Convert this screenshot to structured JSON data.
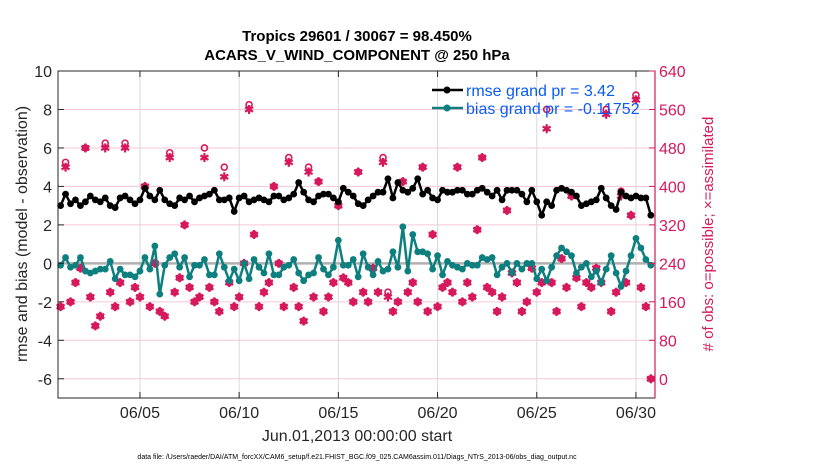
{
  "chart_data": {
    "type": "line",
    "title": "Tropics 29601 / 30067 = 98.450%",
    "subtitle": "ACARS_V_WIND_COMPONENT @ 250 hPa",
    "xlabel": "Jun.01,2013 00:00:00 start",
    "ylabel": "rmse and bias (model - observation)",
    "ylabel_right": "# of obs: o=possible; ×=assimilated",
    "footnote": "data file: /Users/raeder/DAI/ATM_forcXX/CAM6_setup/f.e21.FHIST_BGC.f09_025.CAM6assim.011/Diags_NTrS_2013-06/obs_diag_output.nc",
    "ylim": [
      -7,
      10
    ],
    "ylim_right": [
      -40,
      640
    ],
    "yticks": [
      "10",
      "8",
      "6",
      "4",
      "2",
      "0",
      "-2",
      "-4",
      "-6"
    ],
    "yticks_right": [
      "640",
      "560",
      "480",
      "400",
      "320",
      "240",
      "160",
      "80",
      "0"
    ],
    "xticks": [
      "06/05",
      "06/10",
      "06/15",
      "06/20",
      "06/25",
      "06/30"
    ],
    "grid": true,
    "legend_position": "top-right",
    "colors": {
      "rmse": "#000000",
      "bias": "#0e7f7f",
      "obs": "#d6195c",
      "zero_line": "#b0b0b0",
      "legend_text": "#0a5bf5"
    },
    "times": [
      "06/01 00Z",
      "06/01 06Z",
      "06/01 12Z",
      "06/01 18Z",
      "06/02 00Z",
      "06/02 06Z",
      "06/02 12Z",
      "06/02 18Z",
      "06/03 00Z",
      "06/03 06Z",
      "06/03 12Z",
      "06/03 18Z",
      "06/04 00Z",
      "06/04 06Z",
      "06/04 12Z",
      "06/04 18Z",
      "06/05 00Z",
      "06/05 06Z",
      "06/05 12Z",
      "06/05 18Z",
      "06/06 00Z",
      "06/06 06Z",
      "06/06 12Z",
      "06/06 18Z",
      "06/07 00Z",
      "06/07 06Z",
      "06/07 12Z",
      "06/07 18Z",
      "06/08 00Z",
      "06/08 06Z",
      "06/08 12Z",
      "06/08 18Z",
      "06/09 00Z",
      "06/09 06Z",
      "06/09 12Z",
      "06/09 18Z",
      "06/10 00Z",
      "06/10 06Z",
      "06/10 12Z",
      "06/10 18Z",
      "06/11 00Z",
      "06/11 06Z",
      "06/11 12Z",
      "06/11 18Z",
      "06/12 00Z",
      "06/12 06Z",
      "06/12 12Z",
      "06/12 18Z",
      "06/13 00Z",
      "06/13 06Z",
      "06/13 12Z",
      "06/13 18Z",
      "06/14 00Z",
      "06/14 06Z",
      "06/14 12Z",
      "06/14 18Z",
      "06/15 00Z",
      "06/15 06Z",
      "06/15 12Z",
      "06/15 18Z",
      "06/16 00Z",
      "06/16 06Z",
      "06/16 12Z",
      "06/16 18Z",
      "06/17 00Z",
      "06/17 06Z",
      "06/17 12Z",
      "06/17 18Z",
      "06/18 00Z",
      "06/18 06Z",
      "06/18 12Z",
      "06/18 18Z",
      "06/19 00Z",
      "06/19 06Z",
      "06/19 12Z",
      "06/19 18Z",
      "06/20 00Z",
      "06/20 06Z",
      "06/20 12Z",
      "06/20 18Z",
      "06/21 00Z",
      "06/21 06Z",
      "06/21 12Z",
      "06/21 18Z",
      "06/22 00Z",
      "06/22 06Z",
      "06/22 12Z",
      "06/22 18Z",
      "06/23 00Z",
      "06/23 06Z",
      "06/23 12Z",
      "06/23 18Z",
      "06/24 00Z",
      "06/24 06Z",
      "06/24 12Z",
      "06/24 18Z",
      "06/25 00Z",
      "06/25 06Z",
      "06/25 12Z",
      "06/25 18Z",
      "06/26 00Z",
      "06/26 06Z",
      "06/26 12Z",
      "06/26 18Z",
      "06/27 00Z",
      "06/27 06Z",
      "06/27 12Z",
      "06/27 18Z",
      "06/28 00Z",
      "06/28 06Z",
      "06/28 12Z",
      "06/28 18Z",
      "06/29 00Z",
      "06/29 06Z",
      "06/29 12Z",
      "06/29 18Z",
      "06/30 00Z",
      "06/30 06Z",
      "06/30 12Z",
      "06/30 18Z"
    ],
    "series": [
      {
        "name": "rmse grand pr = 3.42",
        "axis": "left",
        "values": [
          3.0,
          3.6,
          3.1,
          3.3,
          3.0,
          3.2,
          3.5,
          3.3,
          3.2,
          3.4,
          3.0,
          2.9,
          3.4,
          3.5,
          3.3,
          3.1,
          3.3,
          3.9,
          3.5,
          3.3,
          3.8,
          3.3,
          3.1,
          3.0,
          3.4,
          3.3,
          3.5,
          3.2,
          3.4,
          3.5,
          3.6,
          3.8,
          3.3,
          3.3,
          3.4,
          2.7,
          3.4,
          3.5,
          3.2,
          3.3,
          3.4,
          3.3,
          3.2,
          3.5,
          3.5,
          3.3,
          3.4,
          3.6,
          4.2,
          3.7,
          3.3,
          3.2,
          3.5,
          3.6,
          3.6,
          3.4,
          3.2,
          3.9,
          3.7,
          3.5,
          3.1,
          3.0,
          3.3,
          3.5,
          3.7,
          3.7,
          4.4,
          3.4,
          4.2,
          3.8,
          3.7,
          3.9,
          4.4,
          3.6,
          3.8,
          3.4,
          3.3,
          3.8,
          3.7,
          3.7,
          3.8,
          3.8,
          3.6,
          3.6,
          3.8,
          3.9,
          3.7,
          3.5,
          3.8,
          3.3,
          3.8,
          3.8,
          3.8,
          3.6,
          3.2,
          3.8,
          3.2,
          2.5,
          3.2,
          3.0,
          3.8,
          3.9,
          3.8,
          3.7,
          3.5,
          3.0,
          3.1,
          3.2,
          3.3,
          3.9,
          3.4,
          3.0,
          2.8,
          3.7,
          3.5,
          3.4,
          3.5,
          3.4,
          3.4,
          2.5
        ]
      },
      {
        "name": "bias grand pr = -0.11752",
        "axis": "left",
        "values": [
          -0.1,
          0.3,
          -0.2,
          -0.1,
          0.3,
          -0.4,
          -0.5,
          -0.4,
          -0.3,
          -0.3,
          0.1,
          -0.8,
          -0.3,
          -0.6,
          -0.6,
          -0.7,
          -0.4,
          0.3,
          -0.3,
          0.9,
          -1.6,
          -0.1,
          0.3,
          0.5,
          -0.2,
          0.3,
          -0.7,
          -0.1,
          -0.1,
          0.2,
          -0.6,
          -0.6,
          0.5,
          -0.2,
          -0.9,
          -0.3,
          -0.9,
          0.0,
          -0.8,
          0.2,
          -0.2,
          -0.5,
          0.5,
          -0.6,
          -0.6,
          -0.2,
          -0.1,
          0.2,
          -0.5,
          -0.9,
          -0.6,
          -0.5,
          0.3,
          -0.3,
          -0.6,
          -0.2,
          1.2,
          -0.1,
          -0.1,
          0.2,
          -0.7,
          0.5,
          -0.2,
          -0.6,
          0.1,
          -0.4,
          -0.3,
          0.6,
          -0.2,
          1.9,
          -0.4,
          1.5,
          0.6,
          0.6,
          0.5,
          -0.3,
          0.4,
          -0.6,
          0.1,
          -0.1,
          -0.2,
          -0.3,
          0.0,
          -0.1,
          -0.1,
          0.3,
          0.2,
          0.3,
          -0.6,
          -0.2,
          0.0,
          -0.5,
          0.0,
          -0.3,
          0.0,
          0.0,
          -0.8,
          -0.3,
          -0.9,
          -0.2,
          0.4,
          0.8,
          0.6,
          0.4,
          -0.5,
          -0.2,
          0.0,
          -0.7,
          -0.4,
          -1.0,
          -0.3,
          0.4,
          -0.5,
          -1.2,
          -0.4,
          0.4,
          1.3,
          0.8,
          0.2,
          -0.1
        ]
      },
      {
        "name": "obs possible",
        "axis": "right",
        "marker": "o",
        "values": [
          150,
          450,
          160,
          200,
          230,
          480,
          170,
          110,
          130,
          490,
          180,
          150,
          200,
          490,
          160,
          190,
          170,
          400,
          150,
          240,
          140,
          130,
          470,
          180,
          210,
          320,
          190,
          160,
          170,
          480,
          190,
          160,
          140,
          440,
          200,
          150,
          170,
          240,
          570,
          300,
          150,
          180,
          200,
          400,
          240,
          150,
          460,
          190,
          150,
          120,
          440,
          170,
          410,
          140,
          170,
          200,
          360,
          210,
          200,
          160,
          430,
          180,
          160,
          230,
          180,
          460,
          180,
          140,
          160,
          410,
          180,
          200,
          160,
          440,
          140,
          300,
          150,
          190,
          200,
          180,
          440,
          160,
          200,
          170,
          310,
          460,
          190,
          180,
          140,
          170,
          350,
          220,
          200,
          140,
          160,
          230,
          180,
          200,
          560,
          200,
          140,
          250,
          190,
          380,
          210,
          150,
          200,
          190,
          230,
          200,
          560,
          140,
          180,
          390,
          200,
          340,
          590,
          190,
          150,
          0
        ]
      },
      {
        "name": "obs assimilated",
        "axis": "right",
        "marker": "*",
        "values": [
          150,
          440,
          160,
          200,
          230,
          480,
          170,
          110,
          130,
          480,
          180,
          150,
          200,
          480,
          160,
          190,
          170,
          400,
          150,
          240,
          140,
          130,
          460,
          180,
          210,
          320,
          190,
          160,
          170,
          460,
          190,
          160,
          140,
          420,
          200,
          150,
          170,
          240,
          560,
          300,
          150,
          180,
          200,
          400,
          240,
          150,
          450,
          190,
          150,
          120,
          430,
          170,
          410,
          140,
          170,
          200,
          360,
          210,
          200,
          160,
          430,
          180,
          160,
          230,
          180,
          450,
          170,
          140,
          160,
          410,
          180,
          200,
          160,
          440,
          140,
          300,
          150,
          190,
          200,
          180,
          440,
          160,
          200,
          170,
          310,
          460,
          190,
          180,
          140,
          170,
          350,
          220,
          200,
          140,
          160,
          230,
          180,
          200,
          520,
          200,
          140,
          250,
          190,
          380,
          210,
          150,
          200,
          190,
          230,
          200,
          550,
          140,
          180,
          380,
          200,
          340,
          580,
          190,
          150,
          0
        ]
      }
    ]
  }
}
